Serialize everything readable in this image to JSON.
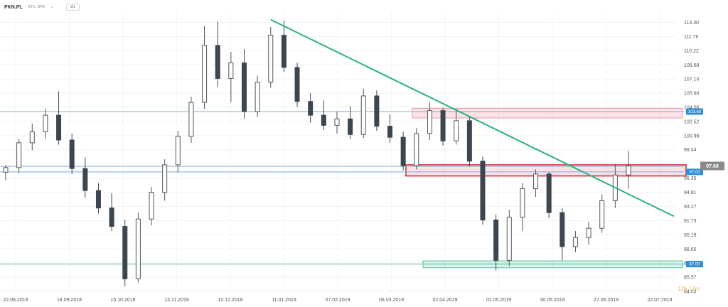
{
  "toolbar": {
    "symbol": "PKN.PL",
    "source": "BTC, GPB",
    "timeframe": "D1"
  },
  "chart_data": {
    "type": "candlestick",
    "yticks": [
      "113.30",
      "111.76",
      "110.22",
      "108.68",
      "107.14",
      "105.60",
      "104.06",
      "102.52",
      "100.98",
      "99.44",
      "96.35",
      "94.81",
      "93.27",
      "91.73",
      "90.19",
      "88.65",
      "87.11",
      "85.57",
      "84.03"
    ],
    "xticks": [
      "22.08.2018",
      "18.09.2018",
      "15.10.2018",
      "13.11.2018",
      "10.12.2018",
      "11.01.2019",
      "07.02.2019",
      "06.03.2019",
      "02.04.2019",
      "02.05.2019",
      "30.05.2019",
      "27.06.2019",
      "22.07.2019"
    ],
    "ylim": [
      84.03,
      114.5
    ],
    "horizontal_levels": [
      103.6,
      97.03,
      87.0
    ],
    "level_labels": [
      "103.60",
      "97.03",
      "87.00"
    ],
    "current_price": "97.68",
    "current_value": 97.68,
    "resistance_zone": [
      96.6,
      97.8
    ],
    "upper_zone": [
      102.9,
      103.95
    ],
    "lower_zone": [
      86.6,
      87.35
    ],
    "trendline": [
      {
        "date": "11.01.2019",
        "value": 113.6
      },
      {
        "date": "22.07.2019",
        "value": 92.2
      }
    ],
    "candles": [
      {
        "date": "22.08.2018",
        "open": 97.0,
        "high": 97.8,
        "low": 96.1,
        "close": 97.5
      },
      {
        "date": "29.08.2018",
        "open": 97.5,
        "high": 100.6,
        "low": 96.9,
        "close": 100.2
      },
      {
        "date": "05.09.2018",
        "open": 100.2,
        "high": 102.3,
        "low": 99.4,
        "close": 101.4
      },
      {
        "date": "12.09.2018",
        "open": 101.4,
        "high": 103.9,
        "low": 100.6,
        "close": 103.2
      },
      {
        "date": "18.09.2018",
        "open": 103.2,
        "high": 105.8,
        "low": 100.0,
        "close": 100.5
      },
      {
        "date": "25.09.2018",
        "open": 100.5,
        "high": 101.2,
        "low": 96.8,
        "close": 97.4
      },
      {
        "date": "02.10.2018",
        "open": 97.4,
        "high": 98.6,
        "low": 94.2,
        "close": 95.0
      },
      {
        "date": "08.10.2018",
        "open": 95.0,
        "high": 95.8,
        "low": 92.5,
        "close": 93.1
      },
      {
        "date": "15.10.2018",
        "open": 93.1,
        "high": 94.7,
        "low": 90.6,
        "close": 91.1
      },
      {
        "date": "22.10.2018",
        "open": 91.1,
        "high": 91.8,
        "low": 84.6,
        "close": 85.4
      },
      {
        "date": "29.10.2018",
        "open": 85.4,
        "high": 92.6,
        "low": 85.0,
        "close": 91.9
      },
      {
        "date": "05.11.2018",
        "open": 91.9,
        "high": 95.4,
        "low": 91.2,
        "close": 94.8
      },
      {
        "date": "13.11.2018",
        "open": 94.8,
        "high": 98.4,
        "low": 93.9,
        "close": 97.8
      },
      {
        "date": "20.11.2018",
        "open": 97.8,
        "high": 101.5,
        "low": 97.0,
        "close": 100.9
      },
      {
        "date": "27.11.2018",
        "open": 100.9,
        "high": 105.2,
        "low": 100.2,
        "close": 104.6
      },
      {
        "date": "03.12.2018",
        "open": 104.6,
        "high": 112.9,
        "low": 103.9,
        "close": 110.8
      },
      {
        "date": "10.12.2018",
        "open": 110.8,
        "high": 113.4,
        "low": 106.3,
        "close": 107.2
      },
      {
        "date": "17.12.2018",
        "open": 107.2,
        "high": 110.1,
        "low": 104.6,
        "close": 108.9
      },
      {
        "date": "28.12.2018",
        "open": 108.9,
        "high": 110.4,
        "low": 102.8,
        "close": 103.6
      },
      {
        "date": "04.01.2019",
        "open": 103.6,
        "high": 107.5,
        "low": 103.0,
        "close": 106.8
      },
      {
        "date": "11.01.2019",
        "open": 106.8,
        "high": 112.8,
        "low": 106.2,
        "close": 111.9
      },
      {
        "date": "18.01.2019",
        "open": 111.9,
        "high": 113.5,
        "low": 107.9,
        "close": 108.4
      },
      {
        "date": "25.01.2019",
        "open": 108.4,
        "high": 108.9,
        "low": 104.1,
        "close": 104.7
      },
      {
        "date": "01.02.2019",
        "open": 104.7,
        "high": 105.6,
        "low": 102.4,
        "close": 103.2
      },
      {
        "date": "07.02.2019",
        "open": 103.2,
        "high": 104.8,
        "low": 101.6,
        "close": 102.1
      },
      {
        "date": "14.02.2019",
        "open": 102.1,
        "high": 103.6,
        "low": 101.2,
        "close": 102.8
      },
      {
        "date": "21.02.2019",
        "open": 102.8,
        "high": 104.2,
        "low": 100.6,
        "close": 101.1
      },
      {
        "date": "28.02.2019",
        "open": 101.1,
        "high": 106.1,
        "low": 100.7,
        "close": 105.3
      },
      {
        "date": "06.03.2019",
        "open": 105.3,
        "high": 105.9,
        "low": 101.5,
        "close": 102.0
      },
      {
        "date": "13.03.2019",
        "open": 102.0,
        "high": 103.3,
        "low": 100.2,
        "close": 100.8
      },
      {
        "date": "20.03.2019",
        "open": 100.8,
        "high": 101.4,
        "low": 97.2,
        "close": 97.7
      },
      {
        "date": "27.03.2019",
        "open": 97.7,
        "high": 101.8,
        "low": 97.3,
        "close": 101.2
      },
      {
        "date": "02.04.2019",
        "open": 101.2,
        "high": 104.6,
        "low": 100.5,
        "close": 103.7
      },
      {
        "date": "09.04.2019",
        "open": 103.7,
        "high": 104.0,
        "low": 99.9,
        "close": 100.4
      },
      {
        "date": "16.04.2019",
        "open": 100.4,
        "high": 103.9,
        "low": 100.0,
        "close": 102.6
      },
      {
        "date": "23.04.2019",
        "open": 102.6,
        "high": 103.1,
        "low": 97.6,
        "close": 98.2
      },
      {
        "date": "02.05.2019",
        "open": 98.2,
        "high": 98.7,
        "low": 91.3,
        "close": 91.8
      },
      {
        "date": "09.05.2019",
        "open": 91.8,
        "high": 92.4,
        "low": 86.3,
        "close": 87.4
      },
      {
        "date": "16.05.2019",
        "open": 87.4,
        "high": 92.9,
        "low": 86.8,
        "close": 92.1
      },
      {
        "date": "23.05.2019",
        "open": 92.1,
        "high": 95.8,
        "low": 90.6,
        "close": 95.2
      },
      {
        "date": "30.05.2019",
        "open": 95.2,
        "high": 97.3,
        "low": 94.3,
        "close": 96.8
      },
      {
        "date": "06.06.2019",
        "open": 96.8,
        "high": 97.0,
        "low": 92.0,
        "close": 92.6
      },
      {
        "date": "13.06.2019",
        "open": 92.6,
        "high": 93.1,
        "low": 87.4,
        "close": 88.9
      },
      {
        "date": "20.06.2019",
        "open": 88.9,
        "high": 90.6,
        "low": 88.3,
        "close": 89.9
      },
      {
        "date": "27.06.2019",
        "open": 89.9,
        "high": 91.6,
        "low": 89.1,
        "close": 90.9
      },
      {
        "date": "04.07.2019",
        "open": 90.9,
        "high": 94.6,
        "low": 90.4,
        "close": 93.9
      },
      {
        "date": "11.07.2019",
        "open": 93.9,
        "high": 97.9,
        "low": 93.1,
        "close": 96.7
      },
      {
        "date": "18.07.2019",
        "open": 96.7,
        "high": 99.3,
        "low": 95.2,
        "close": 97.68
      }
    ],
    "timer": "12h 17m"
  }
}
